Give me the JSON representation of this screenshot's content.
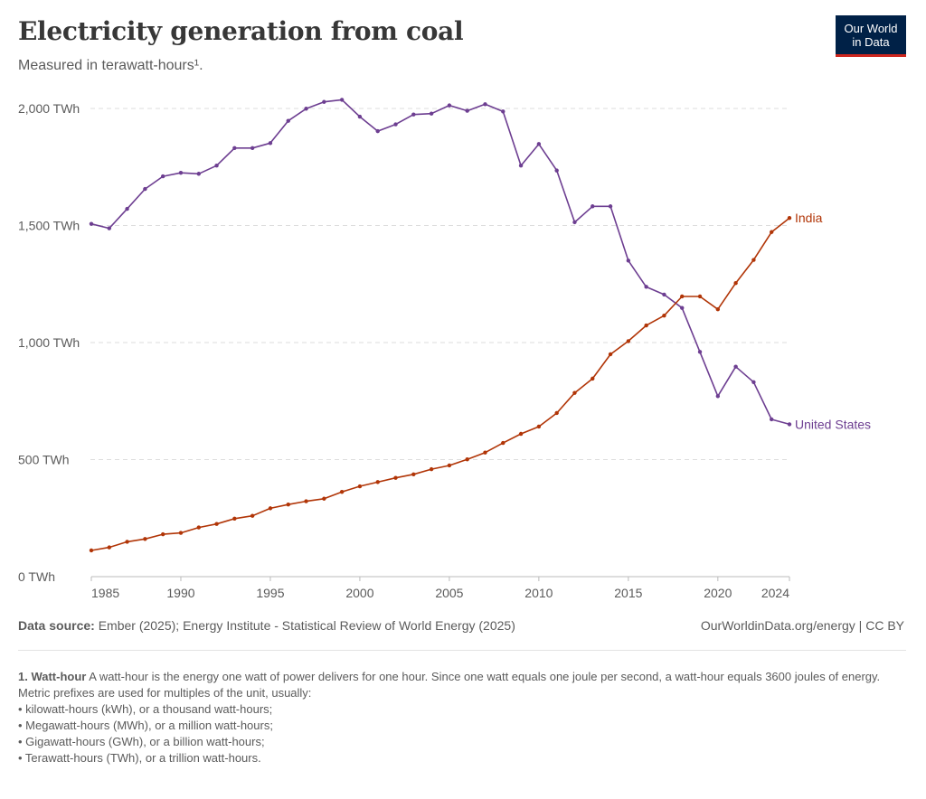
{
  "header": {
    "title": "Electricity generation from coal",
    "subtitle": "Measured in terawatt-hours¹.",
    "logo_text": "Our World in Data"
  },
  "chart_data": {
    "type": "line",
    "title": "Electricity generation from coal",
    "ylabel": "",
    "xlabel": "",
    "ylim": [
      0,
      2000
    ],
    "y_ticks": [
      0,
      500,
      1000,
      1500,
      2000
    ],
    "y_tick_labels": [
      "0 TWh",
      "500 TWh",
      "1,000 TWh",
      "1,500 TWh",
      "2,000 TWh"
    ],
    "x_ticks": [
      1985,
      1990,
      1995,
      2000,
      2005,
      2010,
      2015,
      2020,
      2024
    ],
    "x_tick_labels": [
      "1985",
      "1990",
      "1995",
      "2000",
      "2005",
      "2010",
      "2015",
      "2020",
      "2024"
    ],
    "xlim": [
      1985,
      2024
    ],
    "grid": "horizontal dashed",
    "legend": "line-end labels",
    "x": [
      1985,
      1986,
      1987,
      1988,
      1989,
      1990,
      1991,
      1992,
      1993,
      1994,
      1995,
      1996,
      1997,
      1998,
      1999,
      2000,
      2001,
      2002,
      2003,
      2004,
      2005,
      2006,
      2007,
      2008,
      2009,
      2010,
      2011,
      2012,
      2013,
      2014,
      2015,
      2016,
      2017,
      2018,
      2019,
      2020,
      2021,
      2022,
      2023,
      2024
    ],
    "series": [
      {
        "name": "United States",
        "color": "#6d3e91",
        "values": [
          1507,
          1488,
          1571,
          1656,
          1710,
          1725,
          1721,
          1756,
          1831,
          1831,
          1852,
          1947,
          1999,
          2028,
          2037,
          1965,
          1903,
          1932,
          1974,
          1978,
          2013,
          1990,
          2018,
          1987,
          1756,
          1848,
          1735,
          1514,
          1582,
          1582,
          1350,
          1238,
          1205,
          1148,
          960,
          771,
          897,
          831,
          672,
          651
        ]
      },
      {
        "name": "India",
        "color": "#b13507",
        "values": [
          112,
          125,
          149,
          161,
          181,
          187,
          210,
          225,
          248,
          260,
          292,
          308,
          322,
          333,
          362,
          386,
          404,
          422,
          437,
          459,
          475,
          501,
          530,
          571,
          610,
          641,
          699,
          785,
          846,
          950,
          1006,
          1073,
          1115,
          1197,
          1197,
          1142,
          1254,
          1353,
          1472,
          1532
        ]
      }
    ]
  },
  "footer": {
    "source_label": "Data source:",
    "source_text": "Ember (2025); Energy Institute - Statistical Review of World Energy (2025)",
    "license": "OurWorldinData.org/energy | CC BY",
    "note_title": "1. Watt-hour",
    "note_text": "A watt-hour is the energy one watt of power delivers for one hour. Since one watt equals one joule per second, a watt-hour equals 3600 joules of energy.",
    "note_line2": "Metric prefixes are used for multiples of the unit, usually:",
    "bullets": [
      "• kilowatt-hours (kWh), or a thousand watt-hours;",
      "• Megawatt-hours (MWh), or a million watt-hours;",
      "• Gigawatt-hours (GWh), or a billion watt-hours;",
      "• Terawatt-hours (TWh), or a trillion watt-hours."
    ]
  }
}
